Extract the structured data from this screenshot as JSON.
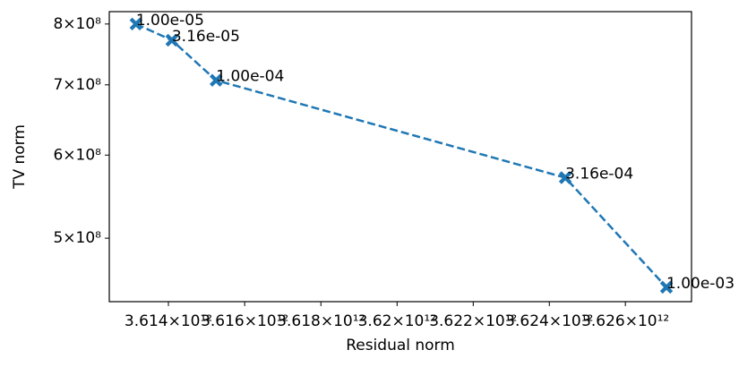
{
  "chart_data": {
    "type": "line",
    "x_label": "Residual norm",
    "y_label": "TV norm",
    "x": [
      3613150000000,
      3614090000000,
      3615250000000,
      3624420000000,
      3627080000000
    ],
    "series": [
      {
        "name": "TV norm",
        "color": "#1f77b4",
        "values": [
          800000000,
          772000000,
          707000000,
          571000000,
          449000000
        ],
        "point_labels": [
          "1.00e-05",
          "3.16e-05",
          "1.00e-04",
          "3.16e-04",
          "1.00e-03"
        ]
      }
    ],
    "xscale": "log",
    "yscale": "log",
    "xlim": [
      3612450000000,
      3627740000000
    ],
    "ylim": [
      435000000,
      822000000
    ],
    "xticks": [
      {
        "value": 3614000000000,
        "label": "3.614×10¹²"
      },
      {
        "value": 3616000000000,
        "label": "3.616×10¹²"
      },
      {
        "value": 3618000000000,
        "label": "3.618×10¹²"
      },
      {
        "value": 3620000000000,
        "label": "3.62×10¹²"
      },
      {
        "value": 3622000000000,
        "label": "3.622×10¹²"
      },
      {
        "value": 3624000000000,
        "label": "3.624×10¹²"
      },
      {
        "value": 3626000000000,
        "label": "3.626×10¹²"
      }
    ],
    "yticks": [
      {
        "value": 500000000,
        "label": "5×10⁸"
      },
      {
        "value": 600000000,
        "label": "6×10⁸"
      },
      {
        "value": 700000000,
        "label": "7×10⁸"
      },
      {
        "value": 800000000,
        "label": "8×10⁸"
      }
    ],
    "grid": false
  }
}
